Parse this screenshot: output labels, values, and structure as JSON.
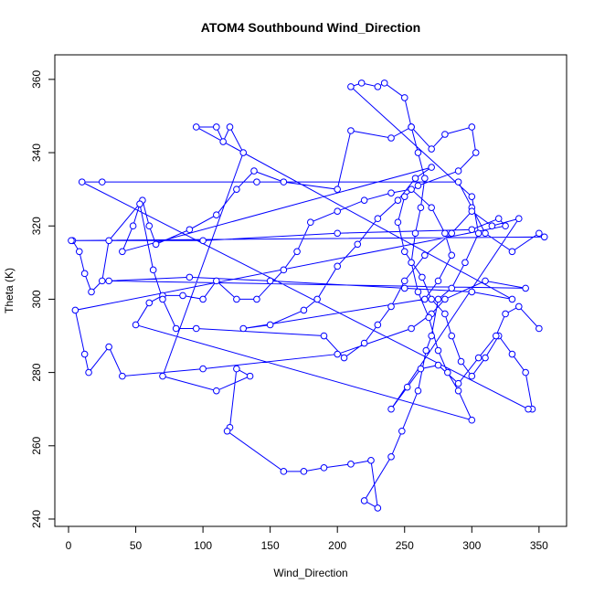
{
  "chart_data": {
    "type": "line",
    "title": "ATOM4 Southbound Wind_Direction",
    "xlabel": "Wind_Direction",
    "ylabel": "Theta (K)",
    "color": "#0000ff",
    "markers": "open-circle",
    "xlim": [
      -10.2,
      370.5
    ],
    "ylim": [
      238.0,
      366.7
    ],
    "xticks": [
      0,
      50,
      100,
      150,
      200,
      250,
      300,
      350
    ],
    "yticks": [
      240,
      260,
      280,
      300,
      320,
      340,
      360
    ],
    "x": [
      3,
      8,
      12,
      17,
      25,
      30,
      55,
      60,
      65,
      90,
      110,
      125,
      138,
      160,
      200,
      210,
      240,
      255,
      270,
      280,
      300,
      303,
      290,
      260,
      250,
      245,
      250,
      263,
      270,
      280,
      285,
      292,
      300,
      310,
      320,
      330,
      340,
      345,
      342,
      10,
      25,
      140,
      290,
      300,
      310,
      330,
      350,
      354,
      2,
      100,
      200,
      300,
      320,
      325,
      5,
      12,
      15,
      30,
      40,
      100,
      200,
      255,
      270,
      280,
      310,
      340,
      30,
      90,
      150,
      250,
      300,
      330,
      95,
      110,
      115,
      120,
      130,
      70,
      110,
      135,
      125,
      120,
      118,
      160,
      175,
      190,
      210,
      225,
      230,
      220,
      240,
      248,
      260,
      266,
      270,
      275,
      285,
      295,
      305,
      300,
      210,
      218,
      230,
      235,
      250,
      255,
      260,
      265,
      262,
      258,
      255,
      260,
      268,
      275,
      282,
      290,
      300,
      50,
      60,
      70,
      85,
      100,
      110,
      125,
      140,
      160,
      170,
      180,
      200,
      220,
      240,
      255,
      270,
      280,
      285,
      275,
      265,
      130,
      150,
      175,
      185,
      200,
      215,
      230,
      245,
      258,
      270,
      40,
      48,
      53,
      63,
      70,
      80,
      95,
      190,
      205,
      220,
      230,
      240,
      250,
      265,
      285,
      300,
      315,
      335,
      240,
      252,
      262,
      275,
      290,
      305,
      318,
      325,
      335,
      350
    ],
    "values": [
      316,
      313,
      307,
      302,
      305,
      316,
      327,
      320,
      315,
      319,
      323,
      330,
      335,
      332,
      330,
      346,
      344,
      347,
      341,
      345,
      347,
      340,
      335,
      331,
      328,
      321,
      313,
      306,
      300,
      296,
      290,
      283,
      279,
      284,
      290,
      285,
      280,
      270,
      270,
      332,
      332,
      332,
      332,
      325,
      318,
      313,
      318,
      317,
      316,
      316,
      318,
      319,
      322,
      320,
      297,
      285,
      280,
      287,
      279,
      281,
      285,
      292,
      296,
      300,
      305,
      303,
      305,
      306,
      305,
      303,
      302,
      300,
      347,
      347,
      343,
      347,
      340,
      279,
      275,
      279,
      281,
      265,
      264,
      253,
      253,
      254,
      255,
      256,
      243,
      245,
      257,
      264,
      275,
      286,
      290,
      300,
      303,
      310,
      318,
      328,
      358,
      359,
      358,
      359,
      355,
      347,
      340,
      333,
      325,
      318,
      310,
      302,
      295,
      286,
      280,
      275,
      267,
      293,
      299,
      301,
      301,
      300,
      305,
      300,
      300,
      308,
      313,
      321,
      324,
      327,
      329,
      330,
      325,
      318,
      312,
      305,
      300,
      292,
      293,
      297,
      300,
      309,
      315,
      322,
      327,
      333,
      336,
      313,
      320,
      326,
      308,
      300,
      292,
      292,
      290,
      284,
      288,
      293,
      298,
      305,
      312,
      318,
      324,
      320,
      322,
      270,
      276,
      281,
      282,
      277,
      284,
      290,
      296,
      298,
      292
    ]
  }
}
